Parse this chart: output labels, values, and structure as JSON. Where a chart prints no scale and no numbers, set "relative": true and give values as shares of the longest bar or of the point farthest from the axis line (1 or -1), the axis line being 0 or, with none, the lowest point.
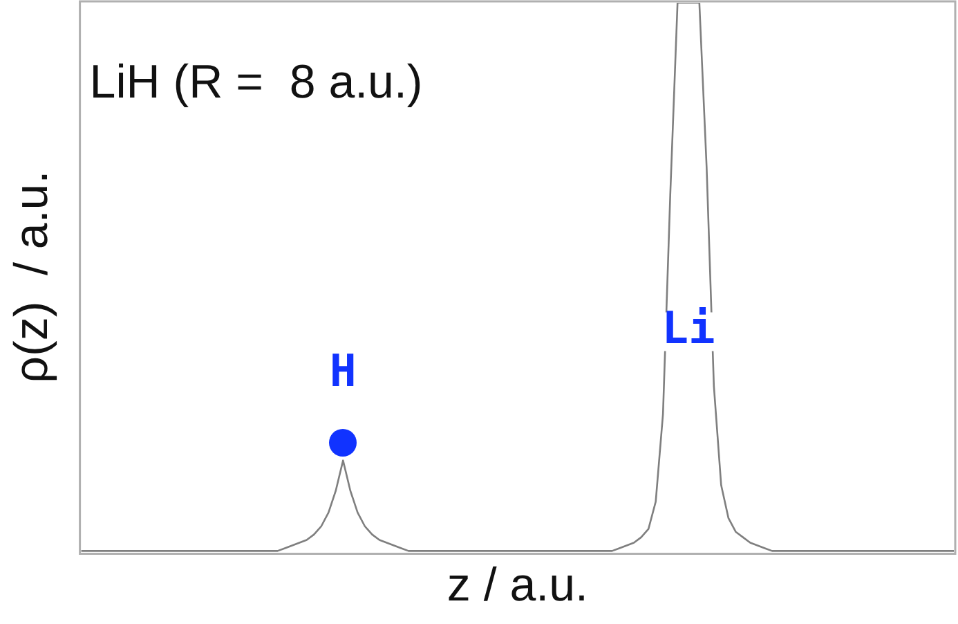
{
  "chart_data": {
    "type": "line",
    "title": "LiH (R =  8 a.u.)",
    "xlabel": "z / a.u.",
    "ylabel": "ρ(z)  / a.u.",
    "relative": true,
    "grid": false,
    "legend": false,
    "tick_labels": false,
    "marker": "none",
    "categories": [
      null,
      null,
      null,
      null,
      null,
      null,
      null,
      null,
      null,
      null,
      null,
      null,
      null,
      null,
      null,
      null,
      null,
      null,
      null,
      null,
      null,
      null,
      null,
      null,
      null,
      null,
      null,
      null,
      null,
      null,
      null,
      null,
      null,
      null,
      null,
      null,
      null,
      null,
      null,
      null,
      null,
      null,
      null,
      null,
      null,
      null,
      null,
      null,
      null,
      null,
      null,
      null,
      null,
      null,
      null,
      null,
      null,
      null,
      null,
      null,
      null,
      null,
      null,
      null,
      null,
      null,
      null,
      null,
      null,
      null,
      null,
      null,
      null,
      null,
      null,
      null,
      null,
      null,
      null,
      null,
      null,
      null,
      null,
      null,
      null,
      null,
      null,
      null,
      null,
      null,
      null,
      null,
      null,
      null,
      null,
      null,
      null,
      null,
      null,
      null,
      null,
      null,
      null,
      null,
      null,
      null,
      null,
      null,
      null,
      null,
      null,
      null,
      null,
      null,
      null,
      null,
      null,
      null,
      null,
      null,
      null
    ],
    "series": [
      {
        "color": "#7f7f7f",
        "values": [
          0,
          0,
          0,
          0,
          0,
          0,
          0,
          0,
          0,
          0,
          0,
          0,
          0,
          0,
          0,
          0,
          0,
          0,
          0,
          0,
          0,
          0,
          0,
          0,
          0,
          0,
          0,
          0,
          0.005,
          0.01,
          0.015,
          0.02,
          0.03,
          0.045,
          0.07,
          0.11,
          0.165,
          0.11,
          0.07,
          0.045,
          0.03,
          0.02,
          0.015,
          0.01,
          0.005,
          0,
          0,
          0,
          0,
          0,
          0,
          0,
          0,
          0,
          0,
          0,
          0,
          0,
          0,
          0,
          0,
          0,
          0,
          0,
          0,
          0,
          0,
          0,
          0,
          0,
          0,
          0,
          0,
          0,
          0.005,
          0.01,
          0.015,
          0.025,
          0.04,
          0.09,
          0.25,
          0.65,
          1,
          1,
          1,
          1,
          0.7,
          0.3,
          0.12,
          0.06,
          0.035,
          0.025,
          0.015,
          0.01,
          0.005,
          0,
          0,
          0,
          0,
          0,
          0,
          0,
          0,
          0,
          0,
          0,
          0,
          0,
          0,
          0,
          0,
          0,
          0,
          0,
          0,
          0,
          0,
          0,
          0,
          0,
          0
        ]
      }
    ],
    "annotations": [
      "H",
      "Li"
    ]
  }
}
